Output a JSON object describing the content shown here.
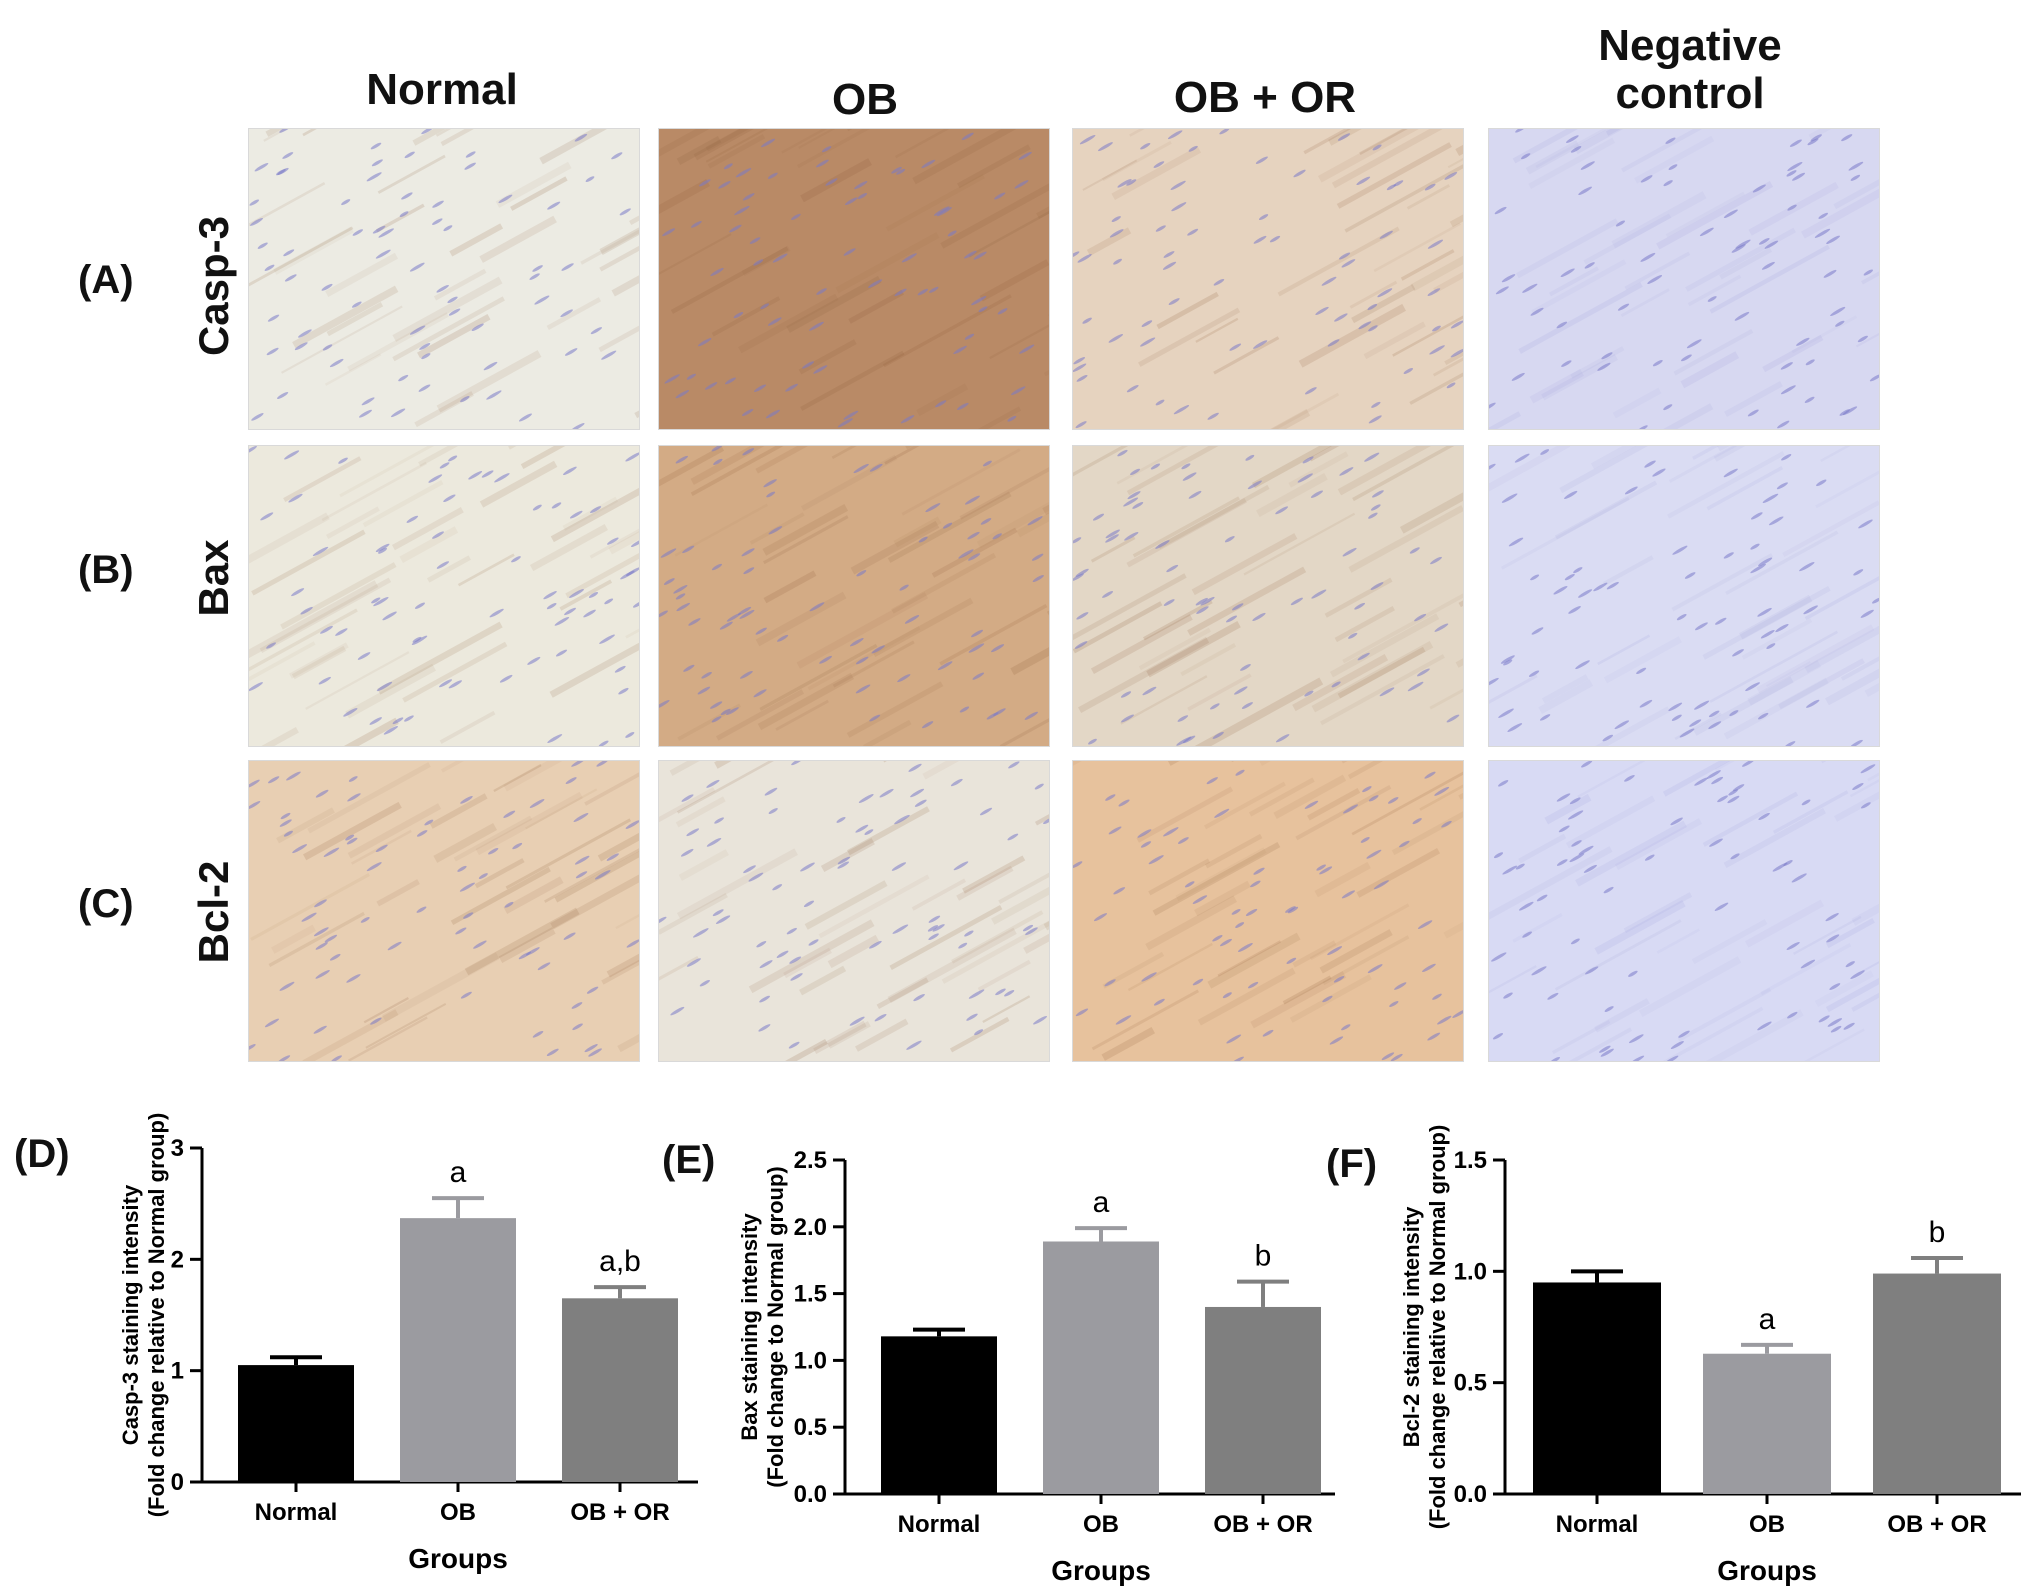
{
  "columns": [
    "Normal",
    "OB",
    "OB + OR",
    "Negative\ncontrol"
  ],
  "rows": [
    {
      "letter": "(A)",
      "marker": "Casp-3"
    },
    {
      "letter": "(B)",
      "marker": "Bax"
    },
    {
      "letter": "(C)",
      "marker": "Bcl-2"
    }
  ],
  "tiles": [
    [
      "#ecebe3",
      "#b98a66",
      "#e6d3bf",
      "#d7d8f1"
    ],
    [
      "#ece9dd",
      "#d3ab85",
      "#e3d7c6",
      "#dadcf3"
    ],
    [
      "#e8cfb3",
      "#e9e4da",
      "#e7c29d",
      "#d8daf4"
    ]
  ],
  "colors": {
    "normal_bar": "#000000",
    "ob_bar": "#9b9ba0",
    "obor_bar": "#7f7f7f",
    "stain_brown": "#8a5a36",
    "nucleus_blue": "#7a7ac8"
  },
  "chart_data": [
    {
      "type": "bar",
      "panel": "(D)",
      "categories": [
        "Normal",
        "OB",
        "OB + OR"
      ],
      "values": [
        1.05,
        2.37,
        1.65
      ],
      "errors": [
        0.07,
        0.18,
        0.1
      ],
      "annotations": [
        "",
        "a",
        "a,b"
      ],
      "xlabel": "Groups",
      "ylabel": [
        "Casp-3 staining intensity",
        "(Fold change relative to Normal group)"
      ],
      "ylim": [
        0,
        3
      ],
      "yticks": [
        0,
        1,
        2,
        3
      ],
      "ytick_labels": [
        "0",
        "1",
        "2",
        "3"
      ]
    },
    {
      "type": "bar",
      "panel": "(E)",
      "categories": [
        "Normal",
        "OB",
        "OB + OR"
      ],
      "values": [
        1.18,
        1.89,
        1.4
      ],
      "errors": [
        0.05,
        0.1,
        0.19
      ],
      "annotations": [
        "",
        "a",
        "b"
      ],
      "xlabel": "Groups",
      "ylabel": [
        "Bax staining intensity",
        "(Fold change to Normal group)"
      ],
      "ylim": [
        0,
        2.5
      ],
      "yticks": [
        0,
        0.5,
        1,
        1.5,
        2,
        2.5
      ],
      "ytick_labels": [
        "0.0",
        "0.5",
        "1.0",
        "1.5",
        "2.0",
        "2.5"
      ]
    },
    {
      "type": "bar",
      "panel": "(F)",
      "categories": [
        "Normal",
        "OB",
        "OB + OR"
      ],
      "values": [
        0.95,
        0.63,
        0.99
      ],
      "errors": [
        0.05,
        0.04,
        0.07
      ],
      "annotations": [
        "",
        "a",
        "b"
      ],
      "xlabel": "Groups",
      "ylabel": [
        "Bcl-2 staining intensity",
        "(Fold change relative to Normal group)"
      ],
      "ylim": [
        0,
        1.5
      ],
      "yticks": [
        0,
        0.5,
        1,
        1.5
      ],
      "ytick_labels": [
        "0.0",
        "0.5",
        "1.0",
        "1.5"
      ]
    }
  ]
}
